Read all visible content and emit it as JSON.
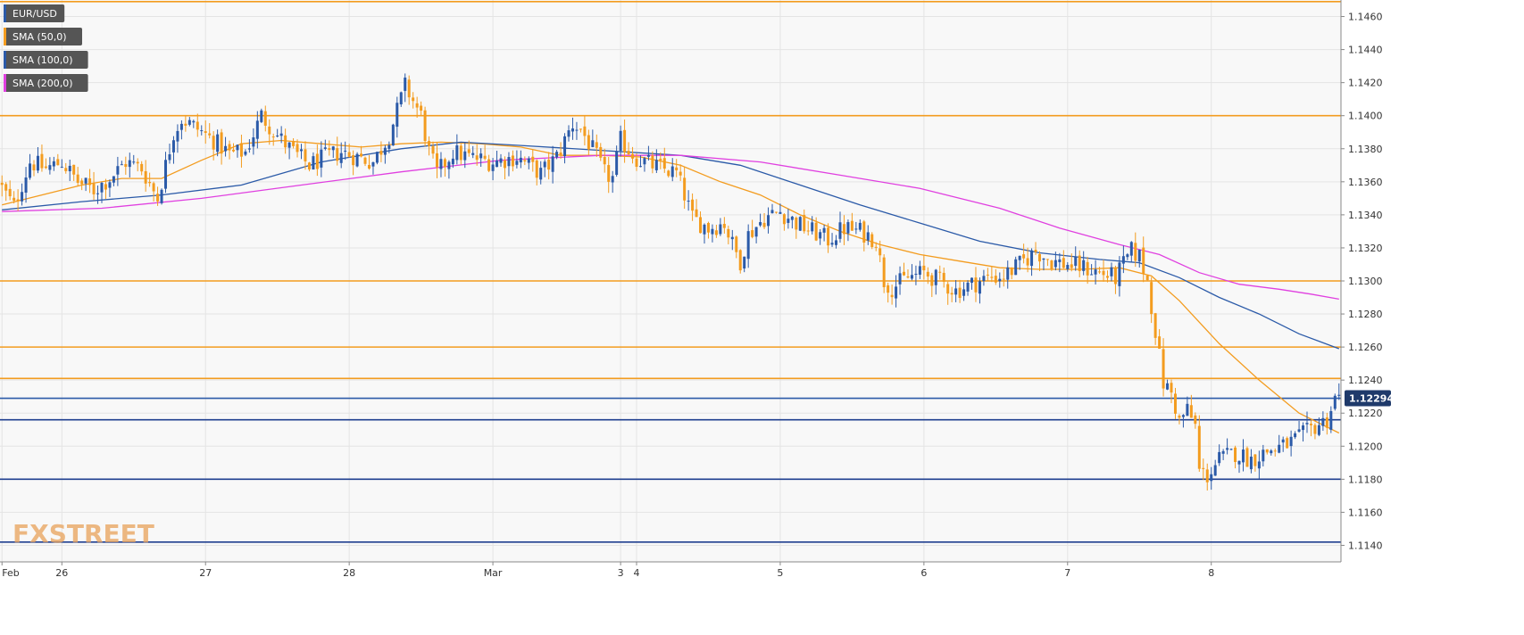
{
  "legend": [
    {
      "label": "EUR/USD",
      "color": "#2b5aa8"
    },
    {
      "label": "SMA (50,0)",
      "color": "#f39c1f"
    },
    {
      "label": "SMA (100,0)",
      "color": "#2b5aa8"
    },
    {
      "label": "SMA (200,0)",
      "color": "#e040e0"
    }
  ],
  "watermark": "FXSTREET",
  "current_price_label": "1.12294",
  "chart_data": {
    "type": "candlestick",
    "title": "",
    "instrument": "EUR/USD",
    "ylim": [
      1.113,
      1.147
    ],
    "y_ticks": [
      "1.1460",
      "1.1440",
      "1.1420",
      "1.1400",
      "1.1380",
      "1.1360",
      "1.1340",
      "1.1320",
      "1.1300",
      "1.1280",
      "1.1260",
      "1.1240",
      "1.1220",
      "1.1200",
      "1.1180",
      "1.1160",
      "1.1140"
    ],
    "x_ticks": [
      {
        "label": "Feb",
        "bar": 0
      },
      {
        "label": "26",
        "bar": 15
      },
      {
        "label": "27",
        "bar": 51
      },
      {
        "label": "28",
        "bar": 87
      },
      {
        "label": "Mar",
        "bar": 123
      },
      {
        "label": "3",
        "bar": 155
      },
      {
        "label": "4",
        "bar": 159
      },
      {
        "label": "5",
        "bar": 195
      },
      {
        "label": "6",
        "bar": 231
      },
      {
        "label": "7",
        "bar": 267
      },
      {
        "label": "8",
        "bar": 303
      }
    ],
    "bar_count": 336,
    "horizontal_levels": [
      {
        "value": 1.1469,
        "color": "#f39c1f"
      },
      {
        "value": 1.14,
        "color": "#f39c1f"
      },
      {
        "value": 1.13,
        "color": "#f39c1f"
      },
      {
        "value": 1.126,
        "color": "#f39c1f"
      },
      {
        "value": 1.1241,
        "color": "#f39c1f"
      },
      {
        "value": 1.1229,
        "color": "#2b5aa8"
      },
      {
        "value": 1.1216,
        "color": "#1f3f8f"
      },
      {
        "value": 1.118,
        "color": "#1f3f8f"
      },
      {
        "value": 1.1142,
        "color": "#1f3f8f"
      }
    ],
    "price_path": [
      [
        0,
        1.136
      ],
      [
        4,
        1.1345
      ],
      [
        8,
        1.1372
      ],
      [
        12,
        1.1368
      ],
      [
        16,
        1.1372
      ],
      [
        20,
        1.136
      ],
      [
        24,
        1.1355
      ],
      [
        28,
        1.1362
      ],
      [
        32,
        1.1372
      ],
      [
        36,
        1.1368
      ],
      [
        40,
        1.135
      ],
      [
        44,
        1.139
      ],
      [
        46,
        1.1398
      ],
      [
        50,
        1.1392
      ],
      [
        54,
        1.1385
      ],
      [
        58,
        1.1377
      ],
      [
        62,
        1.1378
      ],
      [
        66,
        1.14
      ],
      [
        70,
        1.1388
      ],
      [
        74,
        1.1378
      ],
      [
        78,
        1.137
      ],
      [
        82,
        1.1375
      ],
      [
        86,
        1.1378
      ],
      [
        90,
        1.1375
      ],
      [
        94,
        1.1372
      ],
      [
        98,
        1.1388
      ],
      [
        102,
        1.1418
      ],
      [
        106,
        1.14
      ],
      [
        108,
        1.1378
      ],
      [
        110,
        1.1365
      ],
      [
        114,
        1.1378
      ],
      [
        118,
        1.1375
      ],
      [
        124,
        1.1372
      ],
      [
        130,
        1.1375
      ],
      [
        136,
        1.1365
      ],
      [
        140,
        1.1375
      ],
      [
        144,
        1.1395
      ],
      [
        146,
        1.1392
      ],
      [
        150,
        1.1375
      ],
      [
        152,
        1.1365
      ],
      [
        154,
        1.1362
      ],
      [
        156,
        1.1385
      ],
      [
        160,
        1.1374
      ],
      [
        164,
        1.137
      ],
      [
        170,
        1.1365
      ],
      [
        172,
        1.1352
      ],
      [
        174,
        1.1338
      ],
      [
        178,
        1.1332
      ],
      [
        182,
        1.1335
      ],
      [
        184,
        1.1322
      ],
      [
        186,
        1.1312
      ],
      [
        188,
        1.1328
      ],
      [
        192,
        1.1338
      ],
      [
        196,
        1.1342
      ],
      [
        200,
        1.1335
      ],
      [
        204,
        1.133
      ],
      [
        208,
        1.1325
      ],
      [
        212,
        1.1332
      ],
      [
        216,
        1.133
      ],
      [
        220,
        1.1325
      ],
      [
        222,
        1.13
      ],
      [
        224,
        1.1296
      ],
      [
        228,
        1.1302
      ],
      [
        232,
        1.1305
      ],
      [
        236,
        1.13
      ],
      [
        240,
        1.1294
      ],
      [
        244,
        1.1298
      ],
      [
        248,
        1.1302
      ],
      [
        252,
        1.1303
      ],
      [
        256,
        1.131
      ],
      [
        260,
        1.1318
      ],
      [
        264,
        1.1312
      ],
      [
        268,
        1.131
      ],
      [
        272,
        1.1308
      ],
      [
        276,
        1.1305
      ],
      [
        280,
        1.1302
      ],
      [
        284,
        1.1318
      ],
      [
        286,
        1.1315
      ],
      [
        288,
        1.13
      ],
      [
        290,
        1.127
      ],
      [
        292,
        1.1238
      ],
      [
        294,
        1.1232
      ],
      [
        296,
        1.1215
      ],
      [
        298,
        1.1222
      ],
      [
        300,
        1.1212
      ],
      [
        301,
        1.1185
      ],
      [
        303,
        1.1182
      ],
      [
        306,
        1.1192
      ],
      [
        310,
        1.1196
      ],
      [
        314,
        1.1192
      ],
      [
        318,
        1.1197
      ],
      [
        322,
        1.12
      ],
      [
        326,
        1.1205
      ],
      [
        330,
        1.1212
      ],
      [
        333,
        1.1216
      ],
      [
        335,
        1.1229
      ]
    ],
    "series": [
      {
        "name": "SMA (50,0)",
        "color": "#f39c1f",
        "values": [
          [
            0,
            1.1346
          ],
          [
            10,
            1.1352
          ],
          [
            20,
            1.1358
          ],
          [
            30,
            1.1362
          ],
          [
            40,
            1.1362
          ],
          [
            50,
            1.1373
          ],
          [
            60,
            1.1383
          ],
          [
            70,
            1.1385
          ],
          [
            80,
            1.1383
          ],
          [
            90,
            1.1381
          ],
          [
            100,
            1.1383
          ],
          [
            110,
            1.1384
          ],
          [
            120,
            1.1383
          ],
          [
            130,
            1.1381
          ],
          [
            140,
            1.1376
          ],
          [
            150,
            1.1376
          ],
          [
            160,
            1.1375
          ],
          [
            170,
            1.137
          ],
          [
            180,
            1.136
          ],
          [
            190,
            1.1352
          ],
          [
            200,
            1.134
          ],
          [
            210,
            1.133
          ],
          [
            220,
            1.1322
          ],
          [
            230,
            1.1316
          ],
          [
            240,
            1.1312
          ],
          [
            250,
            1.1308
          ],
          [
            260,
            1.1307
          ],
          [
            270,
            1.1307
          ],
          [
            280,
            1.1308
          ],
          [
            288,
            1.1303
          ],
          [
            295,
            1.1288
          ],
          [
            305,
            1.1262
          ],
          [
            315,
            1.124
          ],
          [
            325,
            1.122
          ],
          [
            335,
            1.1208
          ]
        ]
      },
      {
        "name": "SMA (100,0)",
        "color": "#2b5aa8",
        "values": [
          [
            0,
            1.1343
          ],
          [
            20,
            1.1348
          ],
          [
            40,
            1.1352
          ],
          [
            60,
            1.1358
          ],
          [
            80,
            1.1372
          ],
          [
            100,
            1.138
          ],
          [
            115,
            1.1384
          ],
          [
            130,
            1.1382
          ],
          [
            150,
            1.1379
          ],
          [
            170,
            1.1376
          ],
          [
            185,
            1.137
          ],
          [
            200,
            1.1358
          ],
          [
            215,
            1.1346
          ],
          [
            230,
            1.1335
          ],
          [
            245,
            1.1324
          ],
          [
            260,
            1.1317
          ],
          [
            275,
            1.1313
          ],
          [
            285,
            1.1311
          ],
          [
            295,
            1.1302
          ],
          [
            305,
            1.129
          ],
          [
            315,
            1.128
          ],
          [
            325,
            1.1268
          ],
          [
            335,
            1.1259
          ]
        ]
      },
      {
        "name": "SMA (200,0)",
        "color": "#e040e0",
        "values": [
          [
            0,
            1.1342
          ],
          [
            25,
            1.1344
          ],
          [
            50,
            1.135
          ],
          [
            75,
            1.1358
          ],
          [
            100,
            1.1366
          ],
          [
            125,
            1.1373
          ],
          [
            150,
            1.1376
          ],
          [
            170,
            1.1376
          ],
          [
            190,
            1.1372
          ],
          [
            210,
            1.1364
          ],
          [
            230,
            1.1356
          ],
          [
            250,
            1.1344
          ],
          [
            265,
            1.1332
          ],
          [
            280,
            1.1322
          ],
          [
            290,
            1.1316
          ],
          [
            300,
            1.1305
          ],
          [
            310,
            1.1298
          ],
          [
            320,
            1.1295
          ],
          [
            328,
            1.1292
          ],
          [
            335,
            1.1289
          ]
        ]
      }
    ],
    "grid": true,
    "legend_position": "top-left"
  }
}
